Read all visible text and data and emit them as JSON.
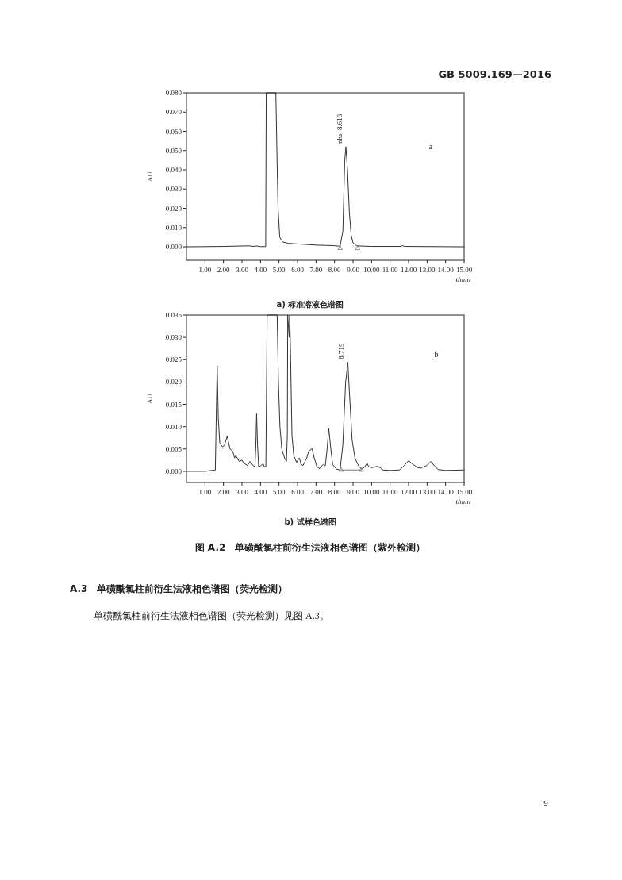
{
  "chart_data": [
    {
      "type": "line",
      "xlabel": "t/min",
      "ylabel": "AU",
      "xlim": [
        0,
        15
      ],
      "ylim": [
        -0.007,
        0.08
      ],
      "xticks": [
        {
          "value": 1,
          "label": "1.00"
        },
        {
          "value": 2,
          "label": "2.00"
        },
        {
          "value": 3,
          "label": "3.00"
        },
        {
          "value": 4,
          "label": "4.00"
        },
        {
          "value": 5,
          "label": "5.00"
        },
        {
          "value": 6,
          "label": "6.00"
        },
        {
          "value": 7,
          "label": "7.00"
        },
        {
          "value": 8,
          "label": "8.00"
        },
        {
          "value": 9,
          "label": "9.00"
        },
        {
          "value": 10,
          "label": "10.00"
        },
        {
          "value": 11,
          "label": "11.00"
        },
        {
          "value": 12,
          "label": "12.00"
        },
        {
          "value": 13,
          "label": "13.00"
        },
        {
          "value": 14,
          "label": "14.00"
        },
        {
          "value": 15,
          "label": "15.00"
        }
      ],
      "yticks": [
        {
          "value": 0,
          "label": "0.000"
        },
        {
          "value": 0.01,
          "label": "0.010"
        },
        {
          "value": 0.02,
          "label": "0.020"
        },
        {
          "value": 0.03,
          "label": "0.030"
        },
        {
          "value": 0.04,
          "label": "0.040"
        },
        {
          "value": 0.05,
          "label": "0.050"
        },
        {
          "value": 0.06,
          "label": "0.060"
        },
        {
          "value": 0.07,
          "label": "0.070"
        },
        {
          "value": 0.08,
          "label": "0.080"
        }
      ],
      "series": [
        {
          "color": "#333333",
          "x": [
            0,
            2,
            3.4,
            3.6,
            3.8,
            4,
            4.28,
            4.31,
            4.83,
            4.9,
            4.95,
            5.04,
            5.2,
            5.5,
            6,
            7,
            8,
            8.3,
            8.45,
            8.55,
            8.613,
            8.7,
            8.8,
            8.9,
            9,
            9.2,
            10,
            11.6,
            11.65,
            11.8,
            15
          ],
          "values": [
            0,
            0.0002,
            0.0005,
            0.0002,
            0.0004,
            0.0001,
            0.0001,
            0.08,
            0.08,
            0.043,
            0.02,
            0.005,
            0.0025,
            0.0018,
            0.0015,
            0.0009,
            0.0006,
            0.0003,
            0.008,
            0.045,
            0.052,
            0.04,
            0.018,
            0.006,
            0.002,
            0.0005,
            0.0002,
            0.0002,
            0.0006,
            0.0002,
            0
          ]
        },
        {
          "type": "scatter",
          "marker": "triangle",
          "color": "#777777",
          "x": [
            8.3,
            9.25
          ],
          "values": [
            -0.0008,
            -0.0008
          ]
        }
      ],
      "annotations": [
        "GB 5009.169—2016",
        "a)  标准溶液色谱图",
        "a",
        {
          "text": "nhs, 8.613",
          "x": 8.613,
          "y": 0.052
        }
      ]
    },
    {
      "type": "line",
      "xlabel": "t/min",
      "ylabel": "AU",
      "xlim": [
        0,
        15
      ],
      "ylim": [
        -0.0025,
        0.035
      ],
      "xticks": [
        {
          "value": 1,
          "label": "1.00"
        },
        {
          "value": 2,
          "label": "2.00"
        },
        {
          "value": 3,
          "label": "3.00"
        },
        {
          "value": 4,
          "label": "4.00"
        },
        {
          "value": 5,
          "label": "5.00"
        },
        {
          "value": 6,
          "label": "6.00"
        },
        {
          "value": 7,
          "label": "7.00"
        },
        {
          "value": 8,
          "label": "8.00"
        },
        {
          "value": 9,
          "label": "9.00"
        },
        {
          "value": 10,
          "label": "10.00"
        },
        {
          "value": 11,
          "label": "11.00"
        },
        {
          "value": 12,
          "label": "12.00"
        },
        {
          "value": 13,
          "label": "13.00"
        },
        {
          "value": 14,
          "label": "14.00"
        },
        {
          "value": 15,
          "label": "15.00"
        }
      ],
      "yticks": [
        {
          "value": 0,
          "label": "0.000"
        },
        {
          "value": 0.005,
          "label": "0.005"
        },
        {
          "value": 0.01,
          "label": "0.010"
        },
        {
          "value": 0.015,
          "label": "0.015"
        },
        {
          "value": 0.02,
          "label": "0.020"
        },
        {
          "value": 0.025,
          "label": "0.025"
        },
        {
          "value": 0.03,
          "label": "0.030"
        },
        {
          "value": 0.035,
          "label": "0.035"
        }
      ],
      "series": [
        {
          "color": "#333333",
          "x": [
            0,
            1,
            1.56,
            1.6,
            1.66,
            1.72,
            1.8,
            1.95,
            2.05,
            2.2,
            2.35,
            2.5,
            2.6,
            2.67,
            2.85,
            3,
            3.1,
            3.3,
            3.43,
            3.6,
            3.7,
            3.75,
            3.79,
            3.84,
            3.9,
            4,
            4.14,
            4.2,
            4.29,
            4.36,
            4.9,
            4.97,
            5.05,
            5.15,
            5.3,
            5.4,
            5.45,
            5.47,
            5.55,
            5.58,
            5.62,
            5.7,
            5.8,
            5.95,
            6.1,
            6.2,
            6.3,
            6.5,
            6.6,
            6.79,
            6.9,
            7.05,
            7.2,
            7.3,
            7.4,
            7.5,
            7.6,
            7.69,
            7.8,
            7.9,
            8.1,
            8.3,
            8.45,
            8.6,
            8.719,
            8.8,
            8.95,
            9.1,
            9.3,
            9.45,
            9.6,
            9.76,
            9.85,
            10,
            10.29,
            10.4,
            10.6,
            11,
            11.5,
            11.75,
            12,
            12.25,
            12.5,
            12.7,
            12.8,
            12.95,
            13.21,
            13.4,
            13.6,
            14,
            15
          ],
          "values": [
            0,
            0,
            0.0003,
            0.01,
            0.0237,
            0.012,
            0.0063,
            0.0055,
            0.0058,
            0.0079,
            0.005,
            0.0045,
            0.003,
            0.0035,
            0.0022,
            0.0025,
            0.0018,
            0.0013,
            0.0022,
            0.0013,
            0.001,
            0.006,
            0.0129,
            0.006,
            0.001,
            0.0012,
            0.0017,
            0.001,
            0.001,
            0.035,
            0.035,
            0.02,
            0.01,
            0.005,
            0.003,
            0.0022,
            0.008,
            0.035,
            0.03,
            0.035,
            0.027,
            0.008,
            0.0035,
            0.002,
            0.003,
            0.0015,
            0.0013,
            0.003,
            0.0045,
            0.0051,
            0.003,
            0.001,
            0.0006,
            0.0012,
            0.0015,
            0.0012,
            0.005,
            0.0096,
            0.005,
            0.0015,
            0.0005,
            0.0003,
            0.006,
            0.02,
            0.0244,
            0.018,
            0.007,
            0.003,
            0.0012,
            0.0005,
            0.0008,
            0.0018,
            0.001,
            0.0008,
            0.0011,
            0.001,
            0.0003,
            0.0002,
            0.0003,
            0.0012,
            0.0024,
            0.0015,
            0.0008,
            0.0007,
            0.001,
            0.0012,
            0.0022,
            0.0012,
            0.0004,
            0.0002,
            0.0003
          ]
        },
        {
          "marker": "triangle",
          "color": "#777777",
          "x": [
            8.35,
            9.45
          ],
          "values": [
            0.0003,
            0.0003
          ]
        }
      ],
      "annotations": [
        "b",
        {
          "text": "8.719",
          "x": 8.719,
          "y": 0.0244
        },
        "b)  试样色谱图",
        "图 A.2　单磺酰氯柱前衍生法液相色谱图（紫外检测）",
        "A.3　单磺酰氯柱前衍生法液相色谱图（荧光检测）",
        "单磺酰氯柱前衍生法液相色谱图（荧光检测）见图 A.3。",
        "9"
      ]
    }
  ]
}
